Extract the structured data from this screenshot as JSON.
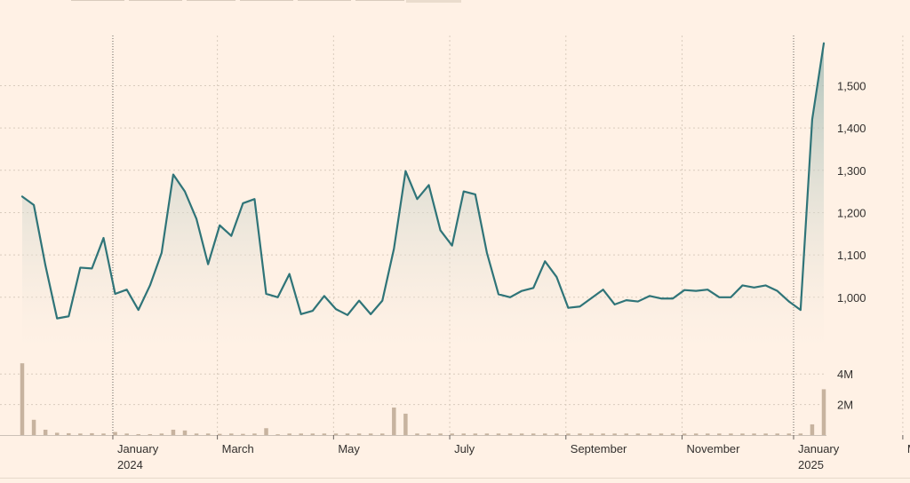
{
  "chart_data": {
    "type": "line",
    "title": "",
    "xlabel": "",
    "ylabel": "",
    "price": {
      "ylim": [
        880,
        1610
      ],
      "yticks": [
        1000,
        1100,
        1200,
        1300,
        1400,
        1500
      ],
      "ytick_labels": [
        "1,000",
        "1,100",
        "1,200",
        "1,300",
        "1,400",
        "1,500"
      ],
      "series": [
        {
          "values": [
            1238,
            1218,
            1075,
            950,
            955,
            1070,
            1068,
            1140,
            1008,
            1018,
            970,
            1028,
            1105,
            1290,
            1250,
            1185,
            1078,
            1170,
            1145,
            1222,
            1232,
            1008,
            1000,
            1055,
            960,
            968,
            1003,
            972,
            958,
            992,
            960,
            992,
            1115,
            1298,
            1232,
            1265,
            1158,
            1122,
            1250,
            1243,
            1105,
            1007,
            1000,
            1015,
            1022,
            1085,
            1048,
            975,
            978,
            998,
            1018,
            983,
            993,
            990,
            1003,
            997,
            997,
            1017,
            1015,
            1018,
            1000,
            1000,
            1028,
            1023,
            1028,
            1015,
            990,
            970,
            1420,
            1600
          ]
        }
      ]
    },
    "volume": {
      "ylim": [
        0,
        5000000
      ],
      "yticks": [
        2000000,
        4000000
      ],
      "ytick_labels": [
        "2M",
        "4M"
      ],
      "values": [
        4700000,
        1000000,
        350000,
        150000,
        120000,
        100000,
        120000,
        100000,
        200000,
        100000,
        60000,
        60000,
        100000,
        350000,
        300000,
        100000,
        100000,
        80000,
        100000,
        80000,
        100000,
        450000,
        50000,
        100000,
        100000,
        100000,
        100000,
        100000,
        100000,
        100000,
        100000,
        100000,
        1800000,
        1400000,
        100000,
        100000,
        100000,
        100000,
        100000,
        100000,
        100000,
        100000,
        100000,
        100000,
        100000,
        100000,
        100000,
        100000,
        100000,
        100000,
        100000,
        100000,
        100000,
        100000,
        100000,
        100000,
        100000,
        100000,
        100000,
        100000,
        100000,
        100000,
        100000,
        100000,
        100000,
        100000,
        100000,
        100000,
        700000,
        3000000
      ]
    },
    "x_labels": [
      {
        "month": "January",
        "year": "2024",
        "index": 7.8
      },
      {
        "month": "March",
        "year": "",
        "index": 16.8
      },
      {
        "month": "May",
        "year": "",
        "index": 26.8
      },
      {
        "month": "July",
        "year": "",
        "index": 36.8
      },
      {
        "month": "September",
        "year": "",
        "index": 46.8
      },
      {
        "month": "November",
        "year": "",
        "index": 56.8
      },
      {
        "month": "January",
        "year": "2025",
        "index": 66.4
      },
      {
        "month": "March",
        "year": "",
        "index": 75.8
      }
    ],
    "vgrid_index": [
      16.8,
      26.8,
      36.8,
      46.8,
      56.8,
      75.8
    ],
    "year_line_index": [
      7.8,
      66.4
    ],
    "colors": {
      "line": "#2f7478",
      "area_top": "#9fbab3",
      "area_bottom": "#fff1e5",
      "volume": "#c7b39f"
    }
  }
}
